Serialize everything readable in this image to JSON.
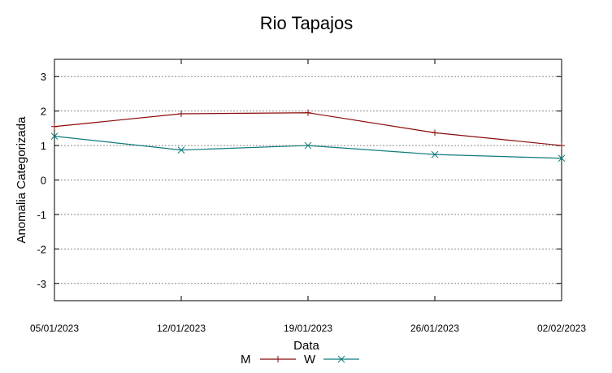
{
  "chart_data": {
    "type": "line",
    "title": "Rio Tapajos",
    "xlabel": "Data",
    "ylabel": "Anomalia Categorizada",
    "ylim": [
      -3.5,
      3.5
    ],
    "yticks": [
      3,
      2,
      1,
      0,
      -1,
      -2,
      -3
    ],
    "categories": [
      "05/01/2023",
      "12/01/2023",
      "19/01/2023",
      "26/01/2023",
      "02/02/2023"
    ],
    "grid": true,
    "legend_position": "bottom-center",
    "series": [
      {
        "name": "M",
        "values": [
          1.55,
          1.92,
          1.95,
          1.37,
          1.0
        ],
        "color": "#8b0a0a",
        "marker": "+"
      },
      {
        "name": "W",
        "values": [
          1.27,
          0.87,
          1.0,
          0.74,
          0.63
        ],
        "color": "#117a7a",
        "marker": "x"
      }
    ]
  }
}
